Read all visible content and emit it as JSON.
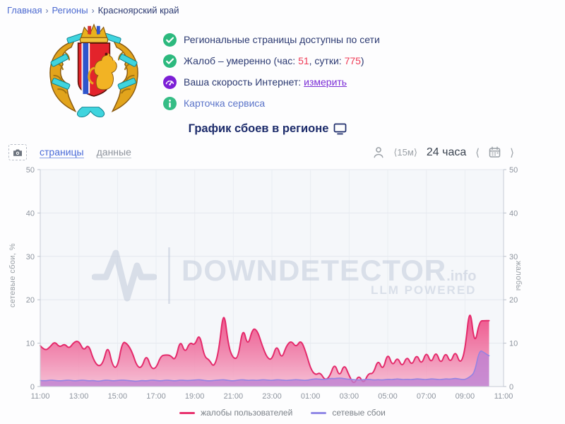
{
  "breadcrumb": {
    "separator": "›",
    "items": [
      {
        "label": "Главная"
      },
      {
        "label": "Регионы"
      },
      {
        "label": "Красноярский край"
      }
    ]
  },
  "status": {
    "line1": "Региональные страницы доступны по сети",
    "line2": {
      "prefix": "Жалоб – умеренно (час: ",
      "hour": "51",
      "mid": ", сутки: ",
      "day": "775",
      "suffix": ")"
    },
    "line3": {
      "text": "Ваша скорость Интернет: ",
      "link": "измерить"
    },
    "line4": "Карточка сервиса"
  },
  "title": "График сбоев в регионе",
  "toolbar": {
    "tab_pages": "страницы",
    "tab_data": "данные",
    "interval": "⟨15м⟩",
    "period": "24 часа",
    "prev": "⟨",
    "next": "⟩"
  },
  "watermark": {
    "brand": "DOWNDETECTOR",
    "tld": ".info",
    "tagline": "LLM POWERED"
  },
  "icons": {
    "status_ok": "check-icon",
    "speed": "speedometer-icon",
    "info": "info-icon",
    "screenshot": "camera-icon",
    "users": "person-icon",
    "calendar": "calendar-icon",
    "title_icon": "monitor-icon",
    "brand_icon": "pulse-icon"
  },
  "colors": {
    "accent_blue": "#4a6bd8",
    "link_purple": "#7c2fd6",
    "alert_red": "#ef3b56",
    "ok_green": "#2cb97e",
    "complaints_pink": "#e8316e",
    "outages_purple": "#9189e6",
    "plot_bg": "#f5f7fa"
  },
  "chart_data": {
    "type": "area",
    "title": "График сбоев в регионе",
    "start_time": "11:00",
    "interval_minutes": 15,
    "hours_span": 24,
    "x_tick_labels": [
      "11:00",
      "13:00",
      "15:00",
      "17:00",
      "19:00",
      "21:00",
      "23:00",
      "01:00",
      "03:00",
      "05:00",
      "07:00",
      "09:00",
      "11:00"
    ],
    "ylim": [
      0,
      50
    ],
    "yticks": [
      0,
      10,
      20,
      30,
      40,
      50
    ],
    "y_axis_left_label": "сетевые сбои, %",
    "y_axis_right_label": "жалобы",
    "grid": true,
    "legend_position": "bottom",
    "series": [
      {
        "name": "жалобы пользователей",
        "color": "#e8316e",
        "line_color": "#e42a6b",
        "fill_from": "#ee4d86",
        "fill_to": "#f6bcd2",
        "values": [
          9.4,
          8.2,
          9.1,
          10.4,
          9.0,
          9.9,
          8.7,
          10.3,
          10.5,
          8.2,
          9.8,
          6.2,
          4.6,
          5.3,
          9.7,
          4.6,
          4.3,
          10.4,
          9.9,
          8.1,
          4.7,
          4.2,
          7.5,
          4.1,
          4.2,
          7.1,
          7.3,
          7.2,
          5.9,
          10.9,
          7.6,
          10.3,
          9.4,
          12.4,
          6.8,
          6.2,
          4.3,
          8.1,
          18.3,
          9.2,
          6.4,
          6.6,
          13.9,
          9.1,
          13.5,
          12.9,
          9.4,
          6.6,
          6.1,
          9.8,
          6.2,
          9.4,
          10.6,
          9.0,
          10.8,
          8.1,
          4.1,
          2.6,
          3.3,
          1.4,
          2.3,
          5.5,
          2.1,
          5.3,
          2.5,
          0.4,
          2.7,
          0.6,
          3.1,
          2.9,
          6.3,
          3.6,
          7.9,
          4.6,
          6.9,
          4.4,
          7.1,
          4.7,
          7.6,
          4.9,
          8.2,
          5.2,
          8.3,
          5.0,
          8.1,
          5.3,
          8.4,
          5.1,
          8.0,
          19.0,
          9.2,
          15.1,
          15.2,
          15.2
        ]
      },
      {
        "name": "сетевые сбои",
        "color": "#9189e6",
        "line_color": "#9583e2",
        "fill_color": "#bc7fd2",
        "values": [
          1.4,
          1.3,
          1.5,
          1.4,
          1.3,
          1.4,
          1.5,
          1.3,
          1.4,
          1.5,
          1.3,
          1.4,
          1.2,
          1.4,
          1.5,
          1.3,
          1.4,
          1.5,
          1.4,
          1.3,
          1.2,
          1.4,
          1.3,
          1.5,
          1.4,
          1.3,
          1.5,
          1.4,
          1.3,
          1.5,
          1.4,
          1.4,
          1.5,
          1.6,
          1.4,
          1.3,
          1.4,
          1.5,
          1.6,
          1.4,
          1.3,
          1.5,
          1.6,
          1.4,
          1.5,
          1.4,
          1.6,
          1.5,
          1.4,
          1.6,
          1.5,
          1.4,
          1.5,
          1.6,
          1.5,
          1.4,
          1.6,
          1.8,
          1.7,
          1.6,
          1.9,
          1.8,
          2.0,
          1.8,
          1.7,
          1.6,
          1.5,
          1.6,
          1.7,
          1.5,
          1.6,
          1.5,
          1.7,
          1.6,
          1.8,
          1.6,
          1.7,
          1.6,
          1.8,
          1.7,
          1.6,
          1.8,
          1.7,
          1.6,
          1.8,
          1.7,
          1.9,
          1.7,
          1.6,
          2.2,
          3.2,
          8.5,
          7.8,
          7.1
        ]
      }
    ]
  }
}
